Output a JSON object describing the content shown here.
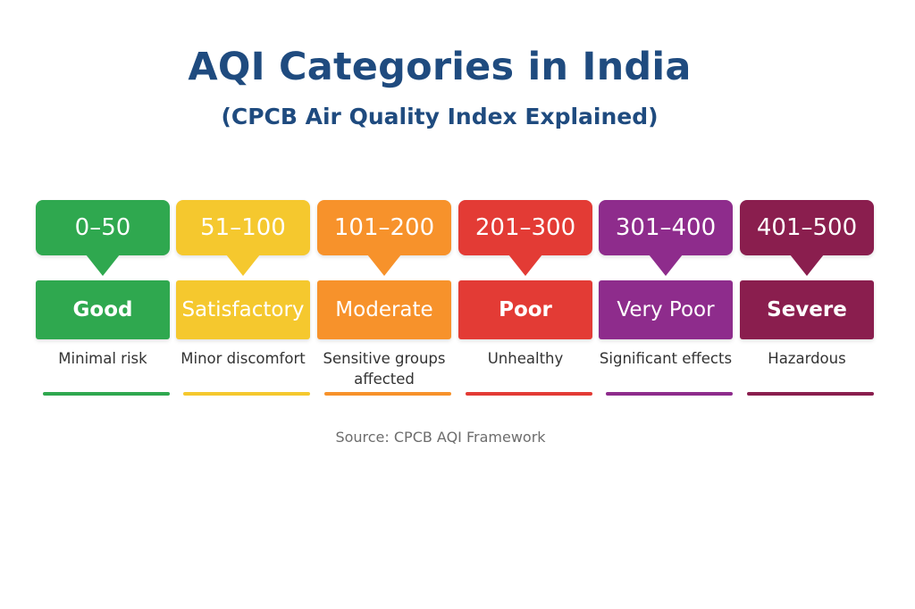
{
  "title": "AQI Categories in India",
  "subtitle": "(CPCB Air Quality Index Explained)",
  "categories": [
    {
      "range": "0–50",
      "label": "Good",
      "description": "Minimal risk",
      "color": "#2fa84f"
    },
    {
      "range": "51–100",
      "label": "Satisfactory",
      "description": "Minor discomfort",
      "color": "#f5c82e"
    },
    {
      "range": "101–200",
      "label": "Moderate",
      "description": "Sensitive groups affected",
      "color": "#f7922b"
    },
    {
      "range": "201–300",
      "label": "Poor",
      "description": "Unhealthy",
      "color": "#e33b35"
    },
    {
      "range": "301–400",
      "label": "Very Poor",
      "description": "Significant effects",
      "color": "#8e2c8c"
    },
    {
      "range": "401–500",
      "label": "Severe",
      "description": "Hazardous",
      "color": "#8a1e4e"
    }
  ],
  "source": "Source: CPCB AQI Framework"
}
